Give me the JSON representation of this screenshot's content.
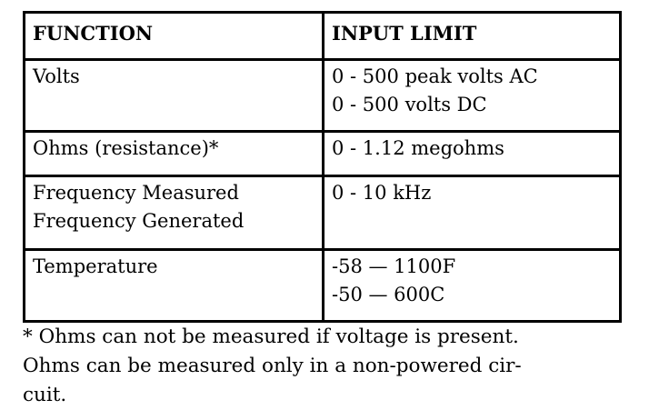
{
  "table": {
    "headers": [
      "FUNCTION",
      "INPUT LIMIT"
    ],
    "rows": [
      {
        "function": [
          "Volts"
        ],
        "limit": [
          "0 - 500 peak volts AC",
          "0 - 500 volts DC"
        ]
      },
      {
        "function": [
          "Ohms (resistance)*"
        ],
        "limit": [
          "0 - 1.12 megohms"
        ]
      },
      {
        "function": [
          "Frequency Measured",
          "Frequency Generated"
        ],
        "limit": [
          "0 - 10 kHz"
        ]
      },
      {
        "function": [
          "Temperature"
        ],
        "limit": [
          "-58 — 1100F",
          "-50 — 600C"
        ]
      }
    ]
  },
  "footnote": [
    "* Ohms can not be measured if voltage is present.",
    "Ohms can be measured only in a non-powered cir-",
    "cuit."
  ]
}
